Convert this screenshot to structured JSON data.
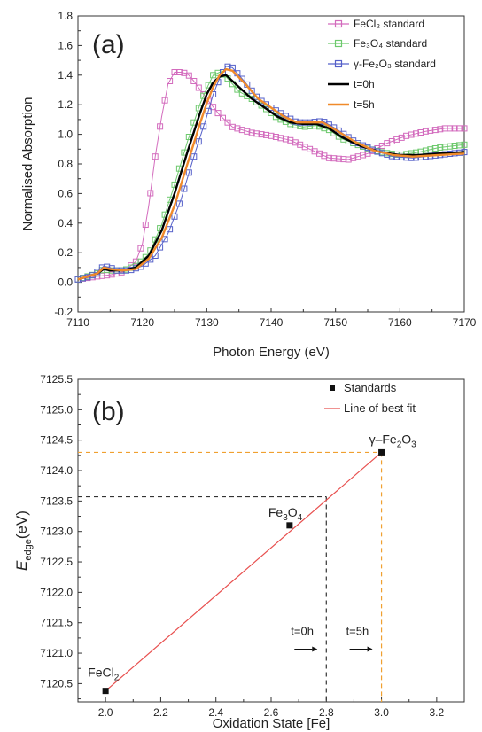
{
  "chart_data": [
    {
      "type": "line",
      "panel_label": "(a)",
      "xlabel": "Photon Energy (eV)",
      "ylabel": "Normalised Absorption",
      "xlim": [
        7110,
        7170
      ],
      "ylim": [
        -0.2,
        1.8
      ],
      "x_ticks": [
        "7110",
        "7120",
        "7130",
        "7140",
        "7150",
        "7160",
        "7170"
      ],
      "y_ticks": [
        "-0.2",
        "0.0",
        "0.2",
        "0.4",
        "0.6",
        "0.8",
        "1.0",
        "1.2",
        "1.4",
        "1.6",
        "1.8"
      ],
      "legend_position": "top-right",
      "series": [
        {
          "name": "FeCl₂ standard",
          "color": "#d36bbd",
          "marker": "square-open",
          "points": [
            [
              7110,
              0.02
            ],
            [
              7113,
              0.04
            ],
            [
              7115,
              0.05
            ],
            [
              7117,
              0.07
            ],
            [
              7119,
              0.14
            ],
            [
              7120,
              0.26
            ],
            [
              7121,
              0.52
            ],
            [
              7122,
              0.85
            ],
            [
              7123,
              1.12
            ],
            [
              7124,
              1.34
            ],
            [
              7125,
              1.42
            ],
            [
              7126,
              1.42
            ],
            [
              7127,
              1.41
            ],
            [
              7128,
              1.36
            ],
            [
              7130,
              1.24
            ],
            [
              7132,
              1.13
            ],
            [
              7134,
              1.05
            ],
            [
              7137,
              1.01
            ],
            [
              7140,
              0.99
            ],
            [
              7143,
              0.96
            ],
            [
              7146,
              0.9
            ],
            [
              7149,
              0.84
            ],
            [
              7152,
              0.83
            ],
            [
              7155,
              0.87
            ],
            [
              7158,
              0.94
            ],
            [
              7161,
              0.99
            ],
            [
              7164,
              1.02
            ],
            [
              7167,
              1.04
            ],
            [
              7170,
              1.04
            ]
          ]
        },
        {
          "name": "Fe₃O₄ standard",
          "color": "#6dc96d",
          "marker": "square-open",
          "points": [
            [
              7110,
              0.02
            ],
            [
              7113,
              0.06
            ],
            [
              7114,
              0.09
            ],
            [
              7115,
              0.08
            ],
            [
              7117,
              0.08
            ],
            [
              7119,
              0.11
            ],
            [
              7121,
              0.19
            ],
            [
              7123,
              0.39
            ],
            [
              7125,
              0.66
            ],
            [
              7127,
              0.95
            ],
            [
              7129,
              1.21
            ],
            [
              7130,
              1.31
            ],
            [
              7131,
              1.4
            ],
            [
              7132,
              1.42
            ],
            [
              7133,
              1.39
            ],
            [
              7135,
              1.29
            ],
            [
              7137,
              1.24
            ],
            [
              7139,
              1.18
            ],
            [
              7141,
              1.11
            ],
            [
              7143,
              1.07
            ],
            [
              7145,
              1.05
            ],
            [
              7147,
              1.06
            ],
            [
              7149,
              1.03
            ],
            [
              7151,
              0.97
            ],
            [
              7154,
              0.92
            ],
            [
              7157,
              0.88
            ],
            [
              7160,
              0.86
            ],
            [
              7163,
              0.88
            ],
            [
              7166,
              0.91
            ],
            [
              7170,
              0.93
            ]
          ]
        },
        {
          "name": "γ-Fe₂O₃ standard",
          "color": "#5560c9",
          "marker": "square-open",
          "points": [
            [
              7110,
              0.02
            ],
            [
              7112,
              0.04
            ],
            [
              7113,
              0.07
            ],
            [
              7114,
              0.11
            ],
            [
              7115,
              0.1
            ],
            [
              7116,
              0.08
            ],
            [
              7118,
              0.08
            ],
            [
              7120,
              0.11
            ],
            [
              7122,
              0.18
            ],
            [
              7124,
              0.33
            ],
            [
              7126,
              0.56
            ],
            [
              7128,
              0.85
            ],
            [
              7130,
              1.12
            ],
            [
              7131,
              1.27
            ],
            [
              7132,
              1.38
            ],
            [
              7133,
              1.46
            ],
            [
              7134,
              1.45
            ],
            [
              7136,
              1.35
            ],
            [
              7138,
              1.24
            ],
            [
              7140,
              1.18
            ],
            [
              7142,
              1.13
            ],
            [
              7144,
              1.08
            ],
            [
              7146,
              1.08
            ],
            [
              7148,
              1.09
            ],
            [
              7150,
              1.04
            ],
            [
              7153,
              0.95
            ],
            [
              7156,
              0.89
            ],
            [
              7159,
              0.85
            ],
            [
              7162,
              0.84
            ],
            [
              7166,
              0.86
            ],
            [
              7170,
              0.88
            ]
          ]
        },
        {
          "name": "t=0h",
          "color": "#000000",
          "marker": "none",
          "points": [
            [
              7110,
              0.02
            ],
            [
              7113,
              0.06
            ],
            [
              7114,
              0.09
            ],
            [
              7115,
              0.08
            ],
            [
              7117,
              0.08
            ],
            [
              7119,
              0.1
            ],
            [
              7121,
              0.18
            ],
            [
              7123,
              0.35
            ],
            [
              7125,
              0.6
            ],
            [
              7127,
              0.88
            ],
            [
              7129,
              1.15
            ],
            [
              7130,
              1.27
            ],
            [
              7131,
              1.35
            ],
            [
              7132,
              1.39
            ],
            [
              7133,
              1.4
            ],
            [
              7135,
              1.32
            ],
            [
              7137,
              1.24
            ],
            [
              7139,
              1.18
            ],
            [
              7141,
              1.12
            ],
            [
              7143,
              1.08
            ],
            [
              7145,
              1.07
            ],
            [
              7147,
              1.07
            ],
            [
              7149,
              1.04
            ],
            [
              7151,
              0.98
            ],
            [
              7154,
              0.92
            ],
            [
              7157,
              0.88
            ],
            [
              7160,
              0.86
            ],
            [
              7163,
              0.86
            ],
            [
              7166,
              0.87
            ],
            [
              7170,
              0.88
            ]
          ]
        },
        {
          "name": "t=5h",
          "color": "#f08a2a",
          "marker": "none",
          "points": [
            [
              7110,
              0.02
            ],
            [
              7113,
              0.06
            ],
            [
              7114,
              0.1
            ],
            [
              7115,
              0.09
            ],
            [
              7117,
              0.08
            ],
            [
              7119,
              0.09
            ],
            [
              7121,
              0.16
            ],
            [
              7123,
              0.3
            ],
            [
              7125,
              0.52
            ],
            [
              7127,
              0.8
            ],
            [
              7129,
              1.08
            ],
            [
              7130,
              1.21
            ],
            [
              7131,
              1.32
            ],
            [
              7132,
              1.4
            ],
            [
              7133,
              1.44
            ],
            [
              7134,
              1.43
            ],
            [
              7136,
              1.34
            ],
            [
              7138,
              1.24
            ],
            [
              7140,
              1.18
            ],
            [
              7142,
              1.12
            ],
            [
              7144,
              1.08
            ],
            [
              7146,
              1.08
            ],
            [
              7148,
              1.08
            ],
            [
              7150,
              1.03
            ],
            [
              7153,
              0.95
            ],
            [
              7156,
              0.89
            ],
            [
              7159,
              0.86
            ],
            [
              7162,
              0.85
            ],
            [
              7166,
              0.86
            ],
            [
              7170,
              0.87
            ]
          ]
        }
      ]
    },
    {
      "type": "scatter",
      "panel_label": "(b)",
      "xlabel": "Oxidation State [Fe]",
      "ylabel_main": "E",
      "ylabel_sub": "edge",
      "ylabel_unit": "(eV)",
      "xlim": [
        1.9,
        3.3
      ],
      "ylim": [
        7120.2,
        7125.5
      ],
      "x_ticks": [
        "2.0",
        "2.2",
        "2.4",
        "2.6",
        "2.8",
        "3.0",
        "3.2"
      ],
      "y_ticks": [
        "7120.5",
        "7121.0",
        "7121.5",
        "7122.0",
        "7122.5",
        "7123.0",
        "7123.5",
        "7124.0",
        "7124.5",
        "7125.0",
        "7125.5"
      ],
      "legend_position": "top-right",
      "legend": {
        "standards": "Standards",
        "fit": "Line of best fit"
      },
      "standards": [
        {
          "x": 2.0,
          "y": 7120.38,
          "label": "FeCl₂"
        },
        {
          "x": 2.667,
          "y": 7123.1,
          "label": "Fe₃O₄"
        },
        {
          "x": 3.0,
          "y": 7124.3,
          "label": "γ–Fe₂O₃"
        }
      ],
      "fit_line": {
        "x": [
          2.0,
          3.0
        ],
        "y": [
          7120.38,
          7124.3
        ],
        "color": "#e8504f"
      },
      "samples": [
        {
          "label": "t=0h",
          "oxidation_state": 2.8,
          "edge_energy": 7123.57,
          "color": "#333333"
        },
        {
          "label": "t=5h",
          "oxidation_state": 3.0,
          "edge_energy": 7124.3,
          "color": "#f0a030"
        }
      ]
    }
  ]
}
